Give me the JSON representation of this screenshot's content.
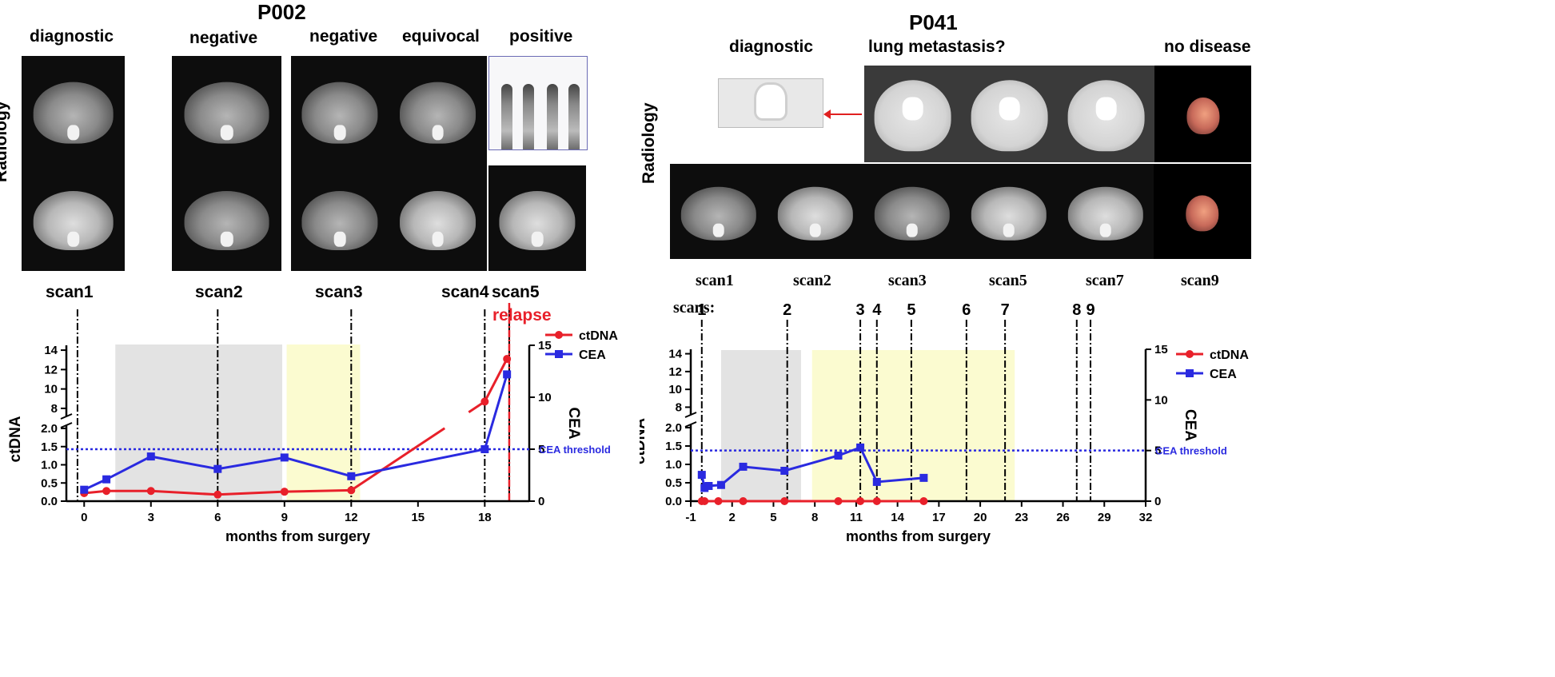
{
  "left_panel": {
    "patient": "P002",
    "radiology_label": "Radiology",
    "column_headers": [
      "diagnostic",
      "negative",
      "negative",
      "equivocal",
      "positive"
    ],
    "scan_labels": [
      "scan1",
      "scan2",
      "scan3",
      "scan4",
      "scan5"
    ],
    "relapse_label": "relapse",
    "threshold_label": "CEA threshold"
  },
  "right_panel": {
    "patient": "P041",
    "radiology_label": "Radiology",
    "column_headers": [
      "diagnostic",
      "lung metastasis?",
      "no disease"
    ],
    "scan_labels": [
      "scan1",
      "scan2",
      "scan3",
      "scan5",
      "scan7",
      "scan9"
    ],
    "scans_prefix": "scans:",
    "scan_numbers": [
      "1",
      "2",
      "3",
      "4",
      "5",
      "6",
      "7",
      "8",
      "9"
    ],
    "threshold_label": "CEA threshold"
  },
  "colors": {
    "ctdna": "#e8202a",
    "cea": "#2a2ae0",
    "threshold": "#2a2ae0",
    "grey_region": "#e3e3e3",
    "yellow_region": "#fbfbd0",
    "relapse": "#e8202a"
  },
  "chart_data": [
    {
      "type": "line",
      "id": "P002",
      "xlabel": "months from surgery",
      "ylabel_left": "ctDNA",
      "ylabel_right": "CEA",
      "x_ticks": [
        0,
        3,
        6,
        9,
        12,
        15,
        18
      ],
      "x_range": [
        -0.8,
        20
      ],
      "y_left_ticks_low": [
        "0.0",
        "0.5",
        "1.0",
        "1.5",
        "2.0"
      ],
      "y_left_ticks_high": [
        "8",
        "10",
        "12",
        "14"
      ],
      "y_left_low_range": [
        0,
        2.0
      ],
      "y_left_high_range": [
        7.5,
        14.5
      ],
      "y_right_ticks": [
        "0",
        "5",
        "10",
        "15"
      ],
      "y_right_range": [
        0,
        15
      ],
      "cea_threshold": 5,
      "scan_months": [
        -0.3,
        6,
        12,
        18,
        19.1
      ],
      "relapse_month": 19.1,
      "shaded_regions": [
        {
          "kind": "grey",
          "start": 1.4,
          "end": 8.9
        },
        {
          "kind": "yellow",
          "start": 9.1,
          "end": 12.4
        }
      ],
      "series": [
        {
          "name": "ctDNA",
          "axis": "left",
          "x": [
            0,
            1,
            3,
            6,
            9,
            12,
            18,
            19
          ],
          "y": [
            0.22,
            0.28,
            0.28,
            0.18,
            0.26,
            0.3,
            8.7,
            13.1
          ]
        },
        {
          "name": "CEA",
          "axis": "right",
          "x": [
            0,
            1,
            3,
            6,
            9,
            12,
            18,
            19
          ],
          "y": [
            1.1,
            2.1,
            4.3,
            3.1,
            4.2,
            2.4,
            5.0,
            12.2
          ]
        }
      ],
      "legend": [
        "ctDNA",
        "CEA"
      ]
    },
    {
      "type": "line",
      "id": "P041",
      "xlabel": "months from surgery",
      "ylabel_left": "ctDNA",
      "ylabel_right": "CEA",
      "x_ticks": [
        -1,
        2,
        5,
        8,
        11,
        14,
        17,
        20,
        23,
        26,
        29,
        32
      ],
      "x_range": [
        -1,
        32
      ],
      "y_left_ticks_low": [
        "0.0",
        "0.5",
        "1.0",
        "1.5",
        "2.0"
      ],
      "y_left_ticks_high": [
        "8",
        "10",
        "12",
        "14"
      ],
      "y_left_low_range": [
        0,
        2.0
      ],
      "y_left_high_range": [
        7.5,
        14.5
      ],
      "y_right_ticks": [
        "0",
        "5",
        "10",
        "15"
      ],
      "y_right_range": [
        0,
        15
      ],
      "cea_threshold": 5,
      "scan_months": [
        -0.2,
        6,
        11.3,
        12.5,
        15,
        19,
        21.8,
        27,
        28
      ],
      "shaded_regions": [
        {
          "kind": "grey",
          "start": 1.2,
          "end": 7.0
        },
        {
          "kind": "yellow",
          "start": 7.8,
          "end": 22.5
        }
      ],
      "series": [
        {
          "name": "ctDNA",
          "axis": "left",
          "x": [
            -0.2,
            0,
            1,
            2.8,
            5.8,
            9.7,
            11.3,
            12.5,
            15.9
          ],
          "y": [
            0,
            0,
            0,
            0,
            0,
            0,
            0,
            0,
            0
          ]
        },
        {
          "name": "CEA",
          "axis": "right",
          "x": [
            -0.2,
            0,
            0.3,
            1.2,
            2.8,
            5.8,
            9.7,
            11.3,
            12.5,
            15.9
          ],
          "y": [
            2.6,
            1.3,
            1.5,
            1.6,
            3.4,
            3.0,
            4.5,
            5.3,
            1.9,
            2.3
          ]
        }
      ],
      "legend": [
        "ctDNA",
        "CEA"
      ]
    }
  ]
}
